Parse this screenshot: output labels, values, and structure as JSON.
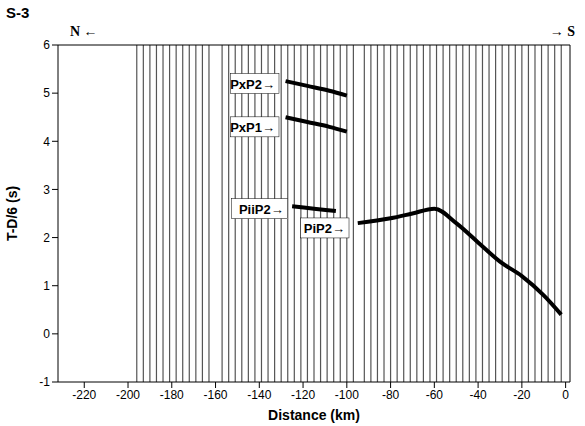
{
  "chart_data": {
    "type": "line",
    "title": "S-3",
    "direction_labels": [
      "N ←",
      "→ S"
    ],
    "xlabel": "Distance (km)",
    "ylabel": "T-D/6 (s)",
    "xlim": [
      -232,
      2
    ],
    "xticks": [
      -220,
      -200,
      -180,
      -160,
      -140,
      -120,
      -100,
      -80,
      -60,
      -40,
      -20,
      0
    ],
    "ylim": [
      -1,
      6
    ],
    "yticks": [
      -1,
      0,
      1,
      2,
      3,
      4,
      5,
      6
    ],
    "traces": [
      -196,
      -193,
      -190,
      -187,
      -184,
      -181,
      -178,
      -175,
      -172,
      -169,
      -166,
      -163,
      -157,
      -154,
      -151,
      -148,
      -145,
      -142,
      -139,
      -136,
      -133,
      -130,
      -127,
      -124,
      -121,
      -118,
      -115,
      -112,
      -109,
      -106,
      -103,
      -100,
      -97,
      -92,
      -89,
      -86,
      -83,
      -80,
      -77,
      -74,
      -71,
      -68,
      -65,
      -62,
      -59,
      -56,
      -53,
      -50,
      -47,
      -44,
      -41,
      -38,
      -35,
      -32,
      -29,
      -26,
      -23,
      -20,
      -17,
      -14,
      -11,
      -8,
      -5,
      -2
    ],
    "series": [
      {
        "name": "PiP2",
        "color": "#000000",
        "x": [
          -2,
          -10,
          -20,
          -30,
          -40,
          -50,
          -60,
          -70,
          -80,
          -95
        ],
        "values": [
          0.4,
          0.8,
          1.2,
          1.5,
          1.9,
          2.3,
          2.6,
          2.5,
          2.4,
          2.3
        ]
      },
      {
        "name": "PiiP2",
        "color": "#000000",
        "x": [
          -125,
          -115,
          -105
        ],
        "values": [
          2.65,
          2.6,
          2.55
        ]
      },
      {
        "name": "PxP1",
        "color": "#000000",
        "x": [
          -128,
          -118,
          -108,
          -100
        ],
        "values": [
          4.5,
          4.4,
          4.3,
          4.2
        ]
      },
      {
        "name": "PxP2",
        "color": "#000000",
        "x": [
          -128,
          -118,
          -108,
          -100
        ],
        "values": [
          5.25,
          5.15,
          5.05,
          4.95
        ]
      }
    ],
    "annotations": [
      {
        "text": "PxP2→",
        "x": -131,
        "y": 5.2
      },
      {
        "text": "PxP1→",
        "x": -131,
        "y": 4.3
      },
      {
        "text": "PiiP2→",
        "x": -127,
        "y": 2.6
      },
      {
        "text": "PiP2→",
        "x": -99,
        "y": 2.2
      }
    ]
  }
}
